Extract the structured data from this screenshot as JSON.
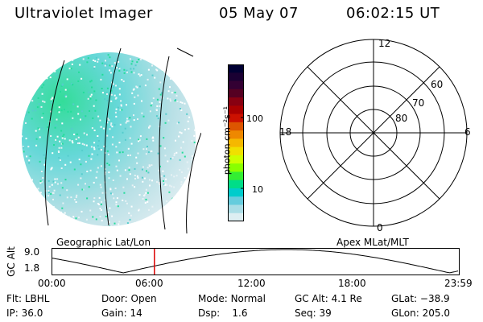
{
  "header": {
    "title": "Ultraviolet Imager",
    "date": "05 May 07",
    "time": "06:02:15 UT"
  },
  "colorbar": {
    "unit_label": "photon cm⁻²s⁻¹",
    "ticks": [
      "100",
      "10"
    ],
    "colors": [
      "#000033",
      "#1a0033",
      "#330033",
      "#550022",
      "#880011",
      "#aa0000",
      "#cc1100",
      "#dd5500",
      "#ee8800",
      "#f5b800",
      "#f0e000",
      "#ccff00",
      "#88ff00",
      "#33ee33",
      "#00dd88",
      "#00cccc",
      "#66ccdd",
      "#aadde6",
      "#ddeef2"
    ]
  },
  "polar_grid": {
    "mlt_labels": {
      "top": "12",
      "left": "18",
      "right": "6",
      "bottom": "0"
    },
    "lat_labels": [
      "60",
      "70",
      "80"
    ]
  },
  "projection_labels": {
    "left": "Geographic Lat/Lon",
    "right": "Apex MLat/MLT"
  },
  "altitude_plot": {
    "ylabel": "GC Alt",
    "y_ticks": [
      "9.0",
      "1.8"
    ],
    "x_ticks": [
      "00:00",
      "06:00",
      "12:00",
      "18:00",
      "23:59"
    ],
    "current_time_hours": 6.04,
    "marker_color": "#dd0000"
  },
  "status": {
    "row1": [
      {
        "label": "Flt:",
        "value": "LBHL"
      },
      {
        "label": "Door:",
        "value": "Open"
      },
      {
        "label": "Mode:",
        "value": "Normal"
      },
      {
        "label": "GC Alt:",
        "value": "4.1 Re"
      },
      {
        "label": "GLat:",
        "value": "−38.9"
      }
    ],
    "row2": [
      {
        "label": "IP:",
        "value": "36.0"
      },
      {
        "label": "Gain:",
        "value": "14"
      },
      {
        "label": "Dsp:",
        "value": "1.6"
      },
      {
        "label": "Seq:",
        "value": "39"
      },
      {
        "label": "GLon:",
        "value": "205.0"
      }
    ]
  }
}
